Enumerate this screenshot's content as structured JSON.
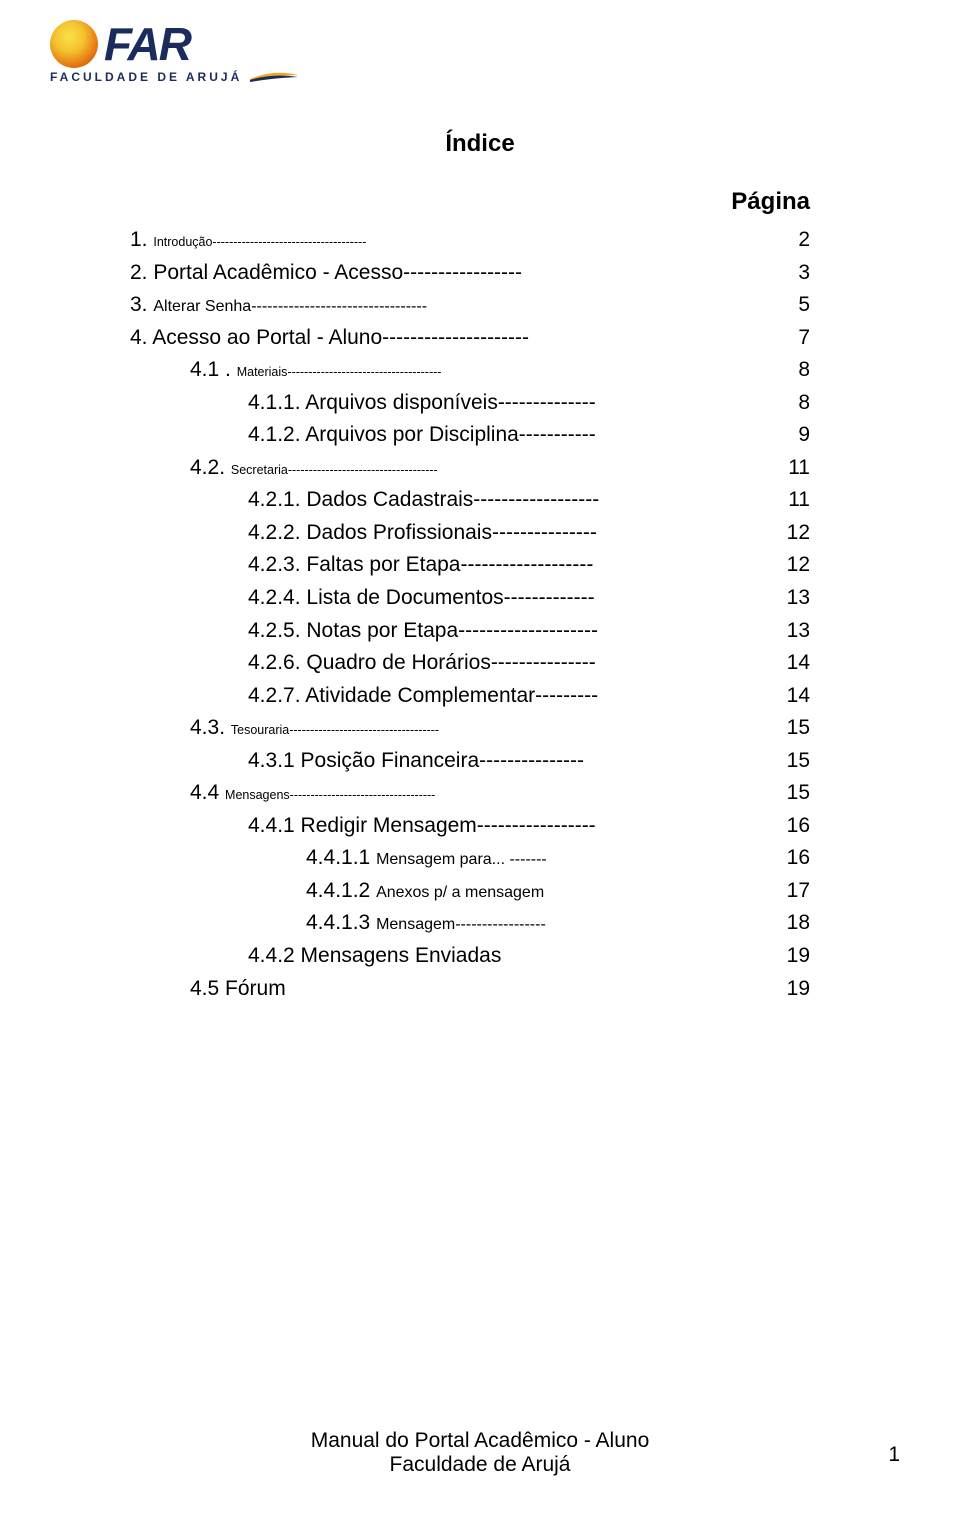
{
  "logo": {
    "main": "FAR",
    "sub": "FACULDADE DE ARUJÁ"
  },
  "title": "Índice",
  "pagina_label": "Página",
  "toc": [
    {
      "lvl": 1,
      "num": "1.",
      "text": "Introdução-------------------------------------",
      "page": "2",
      "small": true
    },
    {
      "lvl": 1,
      "num": "2.",
      "text": "Portal Acadêmico - Acesso-----------------",
      "page": "3"
    },
    {
      "lvl": 1,
      "num": "3.",
      "text": "Alterar Senha---------------------------------",
      "page": "5",
      "medium": true
    },
    {
      "lvl": 1,
      "num": "4.",
      "text": "Acesso ao Portal - Aluno---------------------",
      "page": "7"
    },
    {
      "lvl": 2,
      "num": "4.1 .",
      "text": "Materiais-------------------------------------",
      "page": "8",
      "small": true
    },
    {
      "lvl": 3,
      "num": "4.1.1.",
      "text": "Arquivos disponíveis--------------",
      "page": "8"
    },
    {
      "lvl": 3,
      "num": "4.1.2.",
      "text": "Arquivos por Disciplina-----------",
      "page": "9"
    },
    {
      "lvl": 2,
      "num": "4.2.",
      "text": "Secretaria------------------------------------",
      "page": "11",
      "small": true
    },
    {
      "lvl": 3,
      "num": "4.2.1.",
      "text": "Dados Cadastrais------------------",
      "page": "11"
    },
    {
      "lvl": 3,
      "num": "4.2.2.",
      "text": "Dados Profissionais---------------",
      "page": "12"
    },
    {
      "lvl": 3,
      "num": "4.2.3.",
      "text": "Faltas por Etapa-------------------",
      "page": "12"
    },
    {
      "lvl": 3,
      "num": "4.2.4.",
      "text": "Lista de Documentos-------------",
      "page": "13"
    },
    {
      "lvl": 3,
      "num": "4.2.5.",
      "text": "Notas por Etapa--------------------",
      "page": "13"
    },
    {
      "lvl": 3,
      "num": "4.2.6.",
      "text": "Quadro de Horários---------------",
      "page": "14"
    },
    {
      "lvl": 3,
      "num": "4.2.7.",
      "text": "Atividade Complementar---------",
      "page": "14"
    },
    {
      "lvl": 2,
      "num": "4.3.",
      "text": "Tesouraria------------------------------------",
      "page": "15",
      "small": true
    },
    {
      "lvl": 3,
      "num": "4.3.1",
      "text": "Posição Financeira---------------",
      "page": "15"
    },
    {
      "lvl": 2,
      "num": "4.4",
      "text": " Mensagens-----------------------------------",
      "page": "15",
      "small": true
    },
    {
      "lvl": 3,
      "num": "4.4.1",
      "text": "Redigir Mensagem-----------------",
      "page": "16"
    },
    {
      "lvl": 4,
      "num": "4.4.1.1",
      "text": "Mensagem para... -------",
      "page": "16",
      "medium": true
    },
    {
      "lvl": 4,
      "num": "4.4.1.2",
      "text": "Anexos p/ a mensagem",
      "page": "17",
      "medium": true
    },
    {
      "lvl": 4,
      "num": "4.4.1.3",
      "text": "Mensagem-----------------",
      "page": "18",
      "medium": true
    },
    {
      "lvl": 3,
      "num": "4.4.2",
      "text": "Mensagens Enviadas",
      "page": "19"
    },
    {
      "lvl": 2,
      "num": "4.5",
      "text": "Fórum",
      "page": "19"
    }
  ],
  "footer": {
    "line1": "Manual do Portal Acadêmico - Aluno",
    "line2": "Faculdade de Arujá"
  },
  "page_number": "1"
}
